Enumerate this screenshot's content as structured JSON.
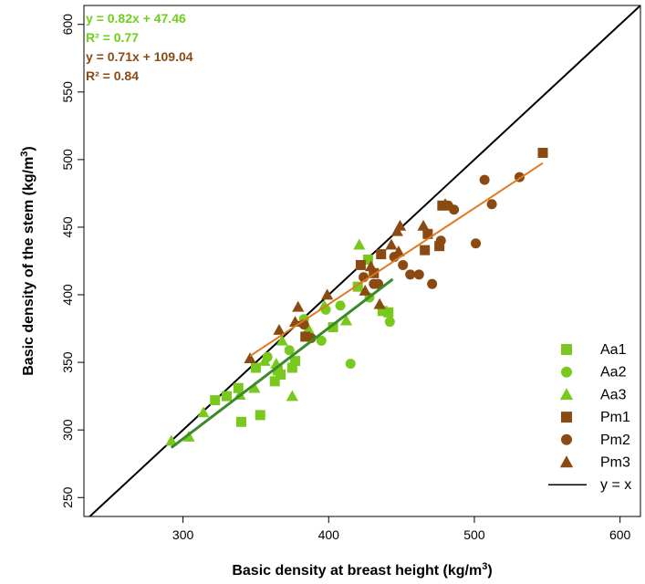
{
  "chart_data": {
    "type": "scatter",
    "xlabel": "Basic density at breast height (kg/m³)",
    "ylabel": "Basic density of the stem (kg/m³)",
    "xlim": [
      232,
      614
    ],
    "ylim": [
      236,
      614
    ],
    "xticks": [
      300,
      400,
      500,
      600
    ],
    "yticks": [
      250,
      300,
      350,
      400,
      450,
      500,
      550,
      600
    ],
    "grid": false,
    "legend_position": "bottom-right",
    "colors": {
      "aa": "#78c81e",
      "aa_line": "#3a8a2a",
      "pm": "#8b4a12",
      "pm_line": "#e07a20",
      "identity": "#000000"
    },
    "series": [
      {
        "name": "Aa1",
        "marker": "square",
        "color": "#78c81e",
        "points": [
          [
            322,
            322
          ],
          [
            330,
            325
          ],
          [
            338,
            331
          ],
          [
            340,
            306
          ],
          [
            350,
            346
          ],
          [
            353,
            311
          ],
          [
            363,
            336
          ],
          [
            365,
            344
          ],
          [
            367,
            341
          ],
          [
            375,
            346
          ],
          [
            377,
            351
          ],
          [
            403,
            376
          ],
          [
            420,
            406
          ],
          [
            427,
            426
          ],
          [
            437,
            388
          ],
          [
            441,
            387
          ]
        ]
      },
      {
        "name": "Aa2",
        "marker": "circle",
        "color": "#78c81e",
        "points": [
          [
            358,
            354
          ],
          [
            373,
            359
          ],
          [
            383,
            382
          ],
          [
            395,
            366
          ],
          [
            398,
            389
          ],
          [
            408,
            392
          ],
          [
            415,
            349
          ],
          [
            442,
            380
          ],
          [
            428,
            398
          ]
        ]
      },
      {
        "name": "Aa3",
        "marker": "triangle",
        "color": "#78c81e",
        "points": [
          [
            292,
            292
          ],
          [
            304,
            295
          ],
          [
            314,
            313
          ],
          [
            339,
            326
          ],
          [
            349,
            331
          ],
          [
            356,
            351
          ],
          [
            364,
            349
          ],
          [
            368,
            366
          ],
          [
            375,
            325
          ],
          [
            386,
            375
          ],
          [
            397,
            392
          ],
          [
            412,
            381
          ],
          [
            421,
            437
          ]
        ]
      },
      {
        "name": "Pm1",
        "marker": "square",
        "color": "#8b4a12",
        "points": [
          [
            384,
            369
          ],
          [
            422,
            422
          ],
          [
            431,
            416
          ],
          [
            436,
            430
          ],
          [
            466,
            433
          ],
          [
            468,
            445
          ],
          [
            476,
            436
          ],
          [
            478,
            466
          ],
          [
            547,
            505
          ]
        ]
      },
      {
        "name": "Pm2",
        "marker": "circle",
        "color": "#8b4a12",
        "points": [
          [
            388,
            368
          ],
          [
            383,
            378
          ],
          [
            424,
            413
          ],
          [
            431,
            408
          ],
          [
            434,
            408
          ],
          [
            445,
            428
          ],
          [
            451,
            422
          ],
          [
            456,
            415
          ],
          [
            462,
            415
          ],
          [
            471,
            408
          ],
          [
            477,
            440
          ],
          [
            482,
            466
          ],
          [
            486,
            463
          ],
          [
            501,
            438
          ],
          [
            507,
            485
          ],
          [
            512,
            467
          ],
          [
            531,
            487
          ]
        ]
      },
      {
        "name": "Pm3",
        "marker": "triangle",
        "color": "#8b4a12",
        "points": [
          [
            346,
            353
          ],
          [
            366,
            374
          ],
          [
            377,
            380
          ],
          [
            379,
            391
          ],
          [
            399,
            400
          ],
          [
            425,
            403
          ],
          [
            429,
            421
          ],
          [
            435,
            393
          ],
          [
            443,
            437
          ],
          [
            447,
            447
          ],
          [
            448,
            432
          ],
          [
            449,
            451
          ],
          [
            465,
            451
          ],
          [
            480,
            467
          ]
        ]
      }
    ],
    "fits": [
      {
        "equation": "y = 0.82x + 47.46",
        "r2_label": "R² =  0.77",
        "slope": 0.82,
        "intercept": 47.46,
        "x_range": [
          292,
          444
        ],
        "color": "#3a8a2a",
        "text_color": "#6fcf1a"
      },
      {
        "equation": "y = 0.71x + 109.04",
        "r2_label": "R² =  0.84",
        "slope": 0.71,
        "intercept": 109.04,
        "x_range": [
          346,
          547
        ],
        "color": "#e07a20",
        "text_color": "#8b4a12"
      }
    ],
    "identity_line": {
      "name": "y = x",
      "color": "#000000"
    },
    "legend": [
      "Aa1",
      "Aa2",
      "Aa3",
      "Pm1",
      "Pm2",
      "Pm3",
      "y = x"
    ]
  }
}
